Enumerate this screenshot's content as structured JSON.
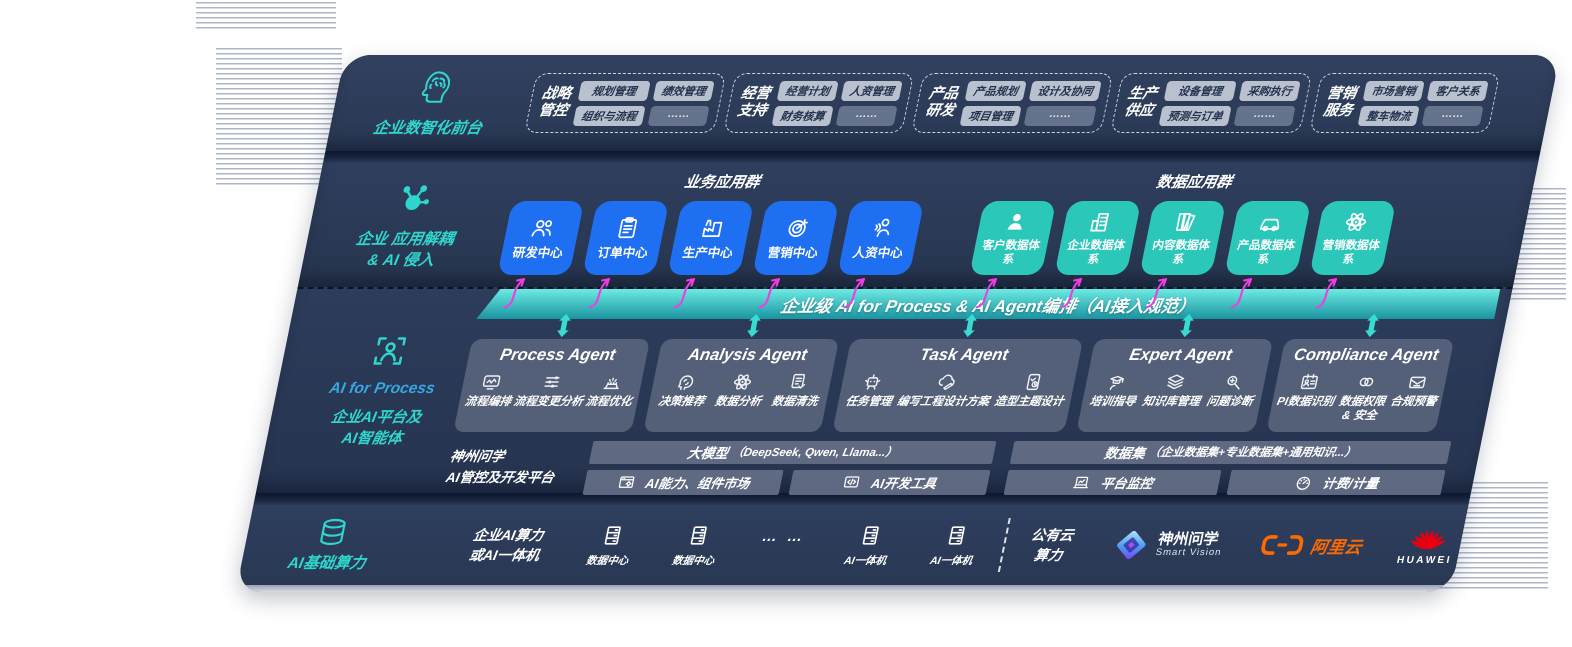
{
  "colors": {
    "accent_teal": "#2fd6cd",
    "app_blue": "#1e6ff2",
    "app_teal": "#2bc7b9",
    "arrow_magenta": "#ee3ee2",
    "panel_navy": "#2b3a58",
    "bus_bar_top": "#6ceae2",
    "bus_bar_bottom": "#1a94a0",
    "aliyun_orange": "#ff6a00",
    "huawei_red": "#e60012"
  },
  "front_office": {
    "label": "企业数智化前台",
    "icon": "brain-head-icon",
    "groups": [
      {
        "title_lines": [
          "战略",
          "管控"
        ],
        "pills": [
          "规划管理",
          "绩效管理",
          "组织与流程",
          "……"
        ]
      },
      {
        "title_lines": [
          "经营",
          "支持"
        ],
        "pills": [
          "经营计划",
          "人资管理",
          "财务核算",
          "……"
        ]
      },
      {
        "title_lines": [
          "产品",
          "研发"
        ],
        "pills": [
          "产品规划",
          "设计及协同",
          "项目管理",
          "……"
        ]
      },
      {
        "title_lines": [
          "生产",
          "供应"
        ],
        "pills": [
          "设备管理",
          "采购执行",
          "预测与订单",
          "……"
        ]
      },
      {
        "title_lines": [
          "营销",
          "服务"
        ],
        "pills": [
          "市场营销",
          "客户关系",
          "整车物流",
          "……"
        ]
      }
    ]
  },
  "app_layer": {
    "label_line1": "企业 应用解耦",
    "label_line2": "& AI 侵入",
    "icon": "molecule-icon",
    "business_title": "业务应用群",
    "business_apps": [
      {
        "icon": "team-icon",
        "label": "研发中心"
      },
      {
        "icon": "clipboard-icon",
        "label": "订单中心"
      },
      {
        "icon": "factory-icon",
        "label": "生产中心"
      },
      {
        "icon": "target-icon",
        "label": "营销中心"
      },
      {
        "icon": "hr-people-icon",
        "label": "人资中心"
      }
    ],
    "data_title": "数据应用群",
    "data_apps": [
      {
        "icon": "person-icon",
        "label": "客户数据体系"
      },
      {
        "icon": "building-icon",
        "label": "企业数据体系"
      },
      {
        "icon": "books-icon",
        "label": "内容数据体系"
      },
      {
        "icon": "car-icon",
        "label": "产品数据体系"
      },
      {
        "icon": "atom-icon",
        "label": "营销数据体系"
      }
    ]
  },
  "ai_bus_label": "企业级 AI for Process & AI Agent编排（AI接入规范）",
  "ai_layer": {
    "label_en": "AI for Process",
    "label_line1": "企业AI平台及",
    "label_line2": "AI智能体",
    "icon": "person-frame-icon",
    "agents": [
      {
        "title": "Process Agent",
        "items": [
          {
            "icon": "workflow-icon",
            "label": "流程编排"
          },
          {
            "icon": "change-analysis-icon",
            "label": "流程变更分析"
          },
          {
            "icon": "optimize-icon",
            "label": "流程优化"
          }
        ]
      },
      {
        "title": "Analysis Agent",
        "items": [
          {
            "icon": "decision-icon",
            "label": "决策推荐"
          },
          {
            "icon": "data-analysis-icon",
            "label": "数据分析"
          },
          {
            "icon": "data-clean-icon",
            "label": "数据清洗"
          }
        ]
      },
      {
        "title": "Task Agent",
        "items": [
          {
            "icon": "task-bot-icon",
            "label": "任务管理"
          },
          {
            "icon": "cloud-edit-icon",
            "label": "编写工程设计方案"
          },
          {
            "icon": "design-tablet-icon",
            "label": "造型主题设计"
          }
        ]
      },
      {
        "title": "Expert Agent",
        "items": [
          {
            "icon": "training-icon",
            "label": "培训指导"
          },
          {
            "icon": "knowledge-base-icon",
            "label": "知识库管理"
          },
          {
            "icon": "diagnosis-icon",
            "label": "问题诊断"
          }
        ]
      },
      {
        "title": "Compliance Agent",
        "items": [
          {
            "icon": "pi-data-icon",
            "label": "PI数据识别"
          },
          {
            "icon": "data-permission-icon",
            "label": "数据权限 & 安全"
          },
          {
            "icon": "compliance-alert-icon",
            "label": "合规预警"
          }
        ]
      }
    ],
    "platform": {
      "label_line1": "神州问学",
      "label_line2": "AI管控及开发平台",
      "model_title": "大模型",
      "model_note": "（DeepSeek, Qwen, Llama...）",
      "model_cells": [
        {
          "icon": "component-market-icon",
          "label": "AI能力、组件市场"
        },
        {
          "icon": "dev-tools-icon",
          "label": "AI开发工具"
        }
      ],
      "dataset_title": "数据集",
      "dataset_note": "（企业数据集+专业数据集+通用知识...）",
      "dataset_cells": [
        {
          "icon": "monitoring-icon",
          "label": "平台监控"
        },
        {
          "icon": "metering-icon",
          "label": "计费/计量"
        }
      ]
    }
  },
  "infra_layer": {
    "label": "AI基础算力",
    "icon": "database-icon",
    "capacity_line1": "企业AI算力",
    "capacity_line2": "或AI一体机",
    "nodes": [
      {
        "icon": "server-icon",
        "label": "数据中心"
      },
      {
        "icon": "server-icon",
        "label": "数据中心"
      },
      {
        "icon": "",
        "label": "… …"
      },
      {
        "icon": "server-icon",
        "label": "AI一体机"
      },
      {
        "icon": "server-icon",
        "label": "AI一体机"
      }
    ],
    "cloud_line1": "公有云",
    "cloud_line2": "算力",
    "vendors": [
      {
        "name": "神州问学",
        "sub": "Smart Vision",
        "logo": "smart-vision-logo"
      },
      {
        "name": "阿里云",
        "logo": "aliyun-logo"
      },
      {
        "name": "HUAWEI",
        "logo": "huawei-logo"
      }
    ]
  }
}
